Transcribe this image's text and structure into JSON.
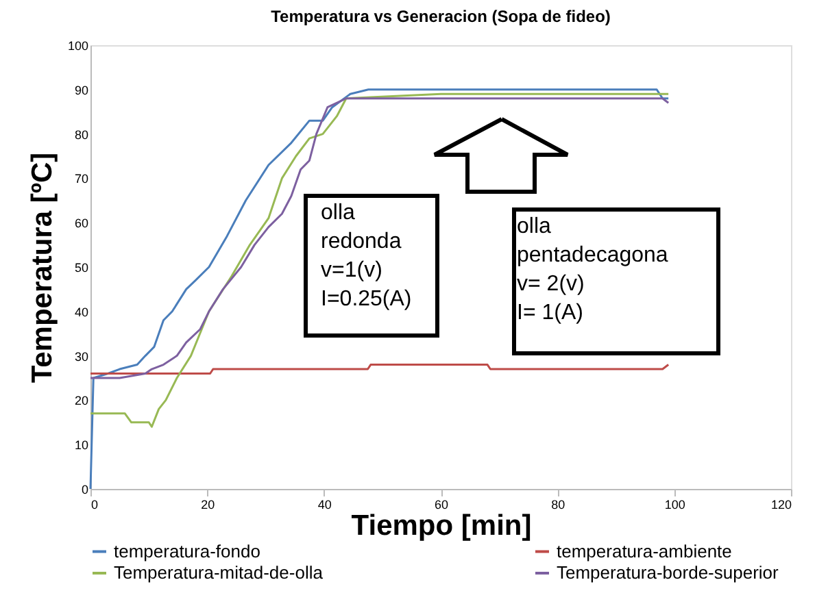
{
  "chart_data": {
    "type": "line",
    "title": "Temperatura vs Generacion (Sopa de fideo)",
    "xlabel": "Tiempo [min]",
    "ylabel": "Temperatura [ºC]",
    "xlim": [
      0,
      120
    ],
    "xticks": [
      0,
      20,
      40,
      60,
      80,
      100,
      120
    ],
    "ylim": [
      0,
      100
    ],
    "yticks": [
      0,
      10,
      20,
      30,
      40,
      50,
      60,
      70,
      80,
      90,
      100
    ],
    "grid": false,
    "legend": "bottom",
    "marker": "none",
    "line_style": "solid",
    "series": [
      {
        "name": "temperatura-fondo",
        "color": "#4a7ebb",
        "x": [
          0,
          0.5,
          3,
          5,
          8,
          9.4,
          10.9,
          12.5,
          14,
          16.4,
          18,
          20.3,
          23.4,
          26.6,
          30.5,
          34.4,
          37.5,
          39.8,
          41.4,
          44.5,
          47.6,
          60,
          80,
          97,
          98,
          99
        ],
        "values": [
          0,
          25,
          26,
          27,
          28,
          30,
          32,
          38,
          40,
          45,
          47,
          50,
          57,
          65,
          73,
          78,
          83,
          83,
          86,
          89,
          90,
          90,
          90,
          90,
          88,
          88
        ]
      },
      {
        "name": "temperatura-ambiente",
        "color": "#be4b48",
        "x": [
          0,
          20.5,
          21,
          47.5,
          48,
          68,
          68.5,
          98,
          99
        ],
        "values": [
          26,
          26,
          27,
          27,
          28,
          28,
          27,
          27,
          28
        ]
      },
      {
        "name": "Temperatura-mitad-de-olla",
        "color": "#98b954",
        "x": [
          0,
          5.9,
          7,
          10,
          10.5,
          11.7,
          12.9,
          14.8,
          17.2,
          20.3,
          24.2,
          27.3,
          30.5,
          32.8,
          35.2,
          37.5,
          39.8,
          42.2,
          43.8,
          60,
          80,
          98,
          99
        ],
        "values": [
          17,
          17,
          15,
          15,
          14,
          18,
          20,
          25,
          30,
          40,
          48,
          55,
          61,
          70,
          75,
          79,
          80,
          84,
          88,
          89,
          89,
          89,
          89
        ]
      },
      {
        "name": "Temperatura-borde-superior",
        "color": "#7d60a0",
        "x": [
          0,
          5,
          9.4,
          10.5,
          12.5,
          14.8,
          16.4,
          18.8,
          20.3,
          22.7,
          25.8,
          28.1,
          30.5,
          32.8,
          34.4,
          36,
          37.5,
          38.7,
          40.6,
          43.8,
          60,
          80,
          98,
          99
        ],
        "values": [
          25,
          25,
          26,
          27,
          28,
          30,
          33,
          36,
          40,
          45,
          50,
          55,
          59,
          62,
          66,
          72,
          74,
          80,
          86,
          88,
          88,
          88,
          88,
          87
        ]
      }
    ],
    "annotations": [
      "olla\nredonda\nv=1(v)\nI=0.25(A)",
      "olla\npentadecagona\nv= 2(v)\nI=  1(A)"
    ]
  }
}
